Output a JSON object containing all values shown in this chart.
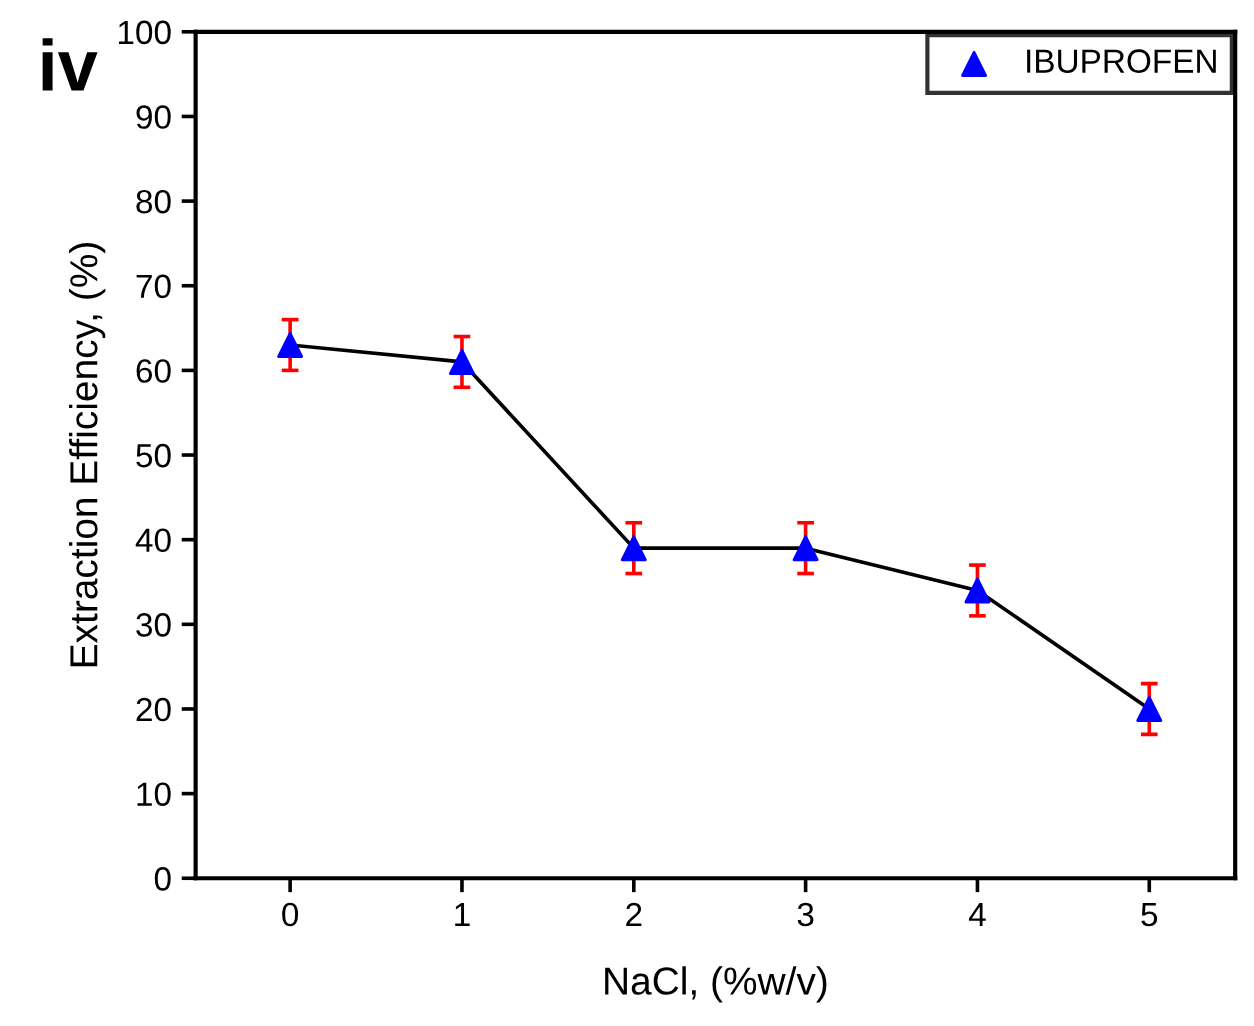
{
  "chart_data": {
    "type": "line",
    "xlabel": "NaCl, (%w/v)",
    "ylabel": "Extraction Efficiency, (%)",
    "annotations": [
      "iv"
    ],
    "x": [
      0,
      1,
      2,
      3,
      4,
      5
    ],
    "series": [
      {
        "name": "IBUPROFEN",
        "color": "#0000ff",
        "values": [
          63,
          61,
          39,
          39,
          34,
          20
        ],
        "errors": [
          3,
          3,
          3,
          3,
          3,
          3
        ]
      }
    ],
    "xlim": [
      -0.55,
      5.5
    ],
    "xticks": [
      0,
      1,
      2,
      3,
      4,
      5
    ],
    "ylim": [
      0,
      100
    ],
    "yticks": [
      0,
      10,
      20,
      30,
      40,
      50,
      60,
      70,
      80,
      90,
      100
    ],
    "marker": "triangle",
    "line_style": "solid",
    "legend": "top right",
    "grid": false
  }
}
